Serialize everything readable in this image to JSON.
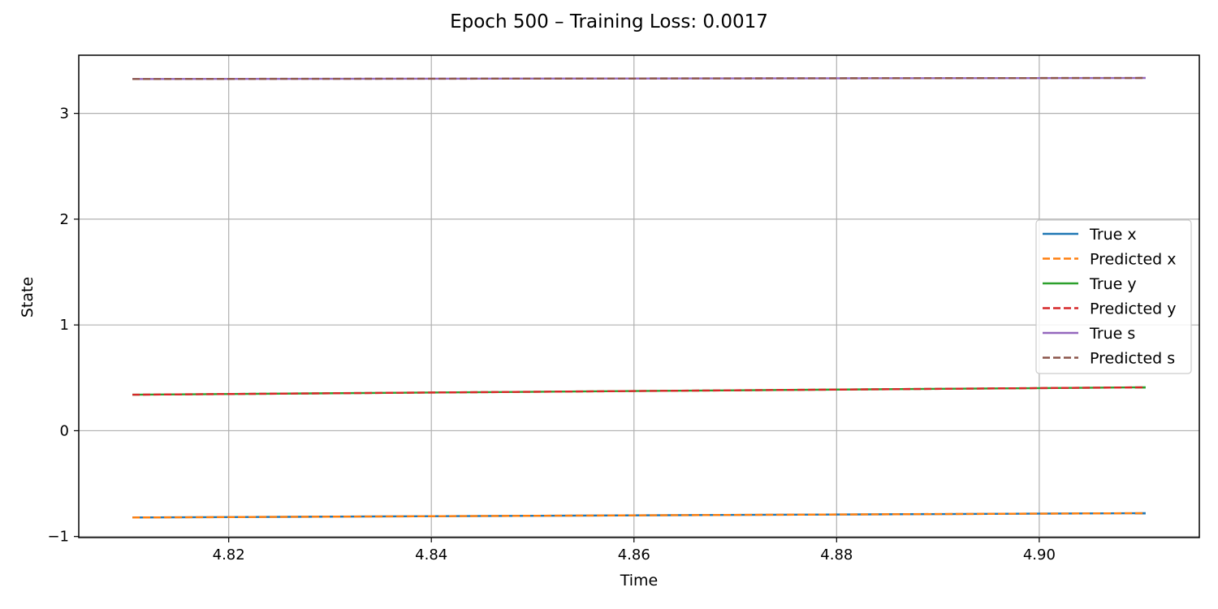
{
  "chart_data": {
    "type": "line",
    "title": "Epoch 500 – Training Loss: 0.0017",
    "xlabel": "Time",
    "ylabel": "State",
    "xlim": [
      4.8052,
      4.9158
    ],
    "ylim": [
      -1.01,
      3.55
    ],
    "xticks": [
      4.82,
      4.84,
      4.86,
      4.88,
      4.9
    ],
    "xtick_labels": [
      "4.82",
      "4.84",
      "4.86",
      "4.88",
      "4.90"
    ],
    "yticks": [
      -1,
      0,
      1,
      2,
      3
    ],
    "ytick_labels": [
      "−1",
      "0",
      "1",
      "2",
      "3"
    ],
    "grid": true,
    "legend_position": "center-right",
    "x": [
      4.8105,
      4.9105
    ],
    "series": [
      {
        "name": "True x",
        "values": [
          -0.82,
          -0.78
        ],
        "color": "#1f77b4",
        "style": "solid"
      },
      {
        "name": "Predicted x",
        "values": [
          -0.82,
          -0.78
        ],
        "color": "#ff7f0e",
        "style": "dashed"
      },
      {
        "name": "True y",
        "values": [
          0.34,
          0.41
        ],
        "color": "#2ca02c",
        "style": "solid"
      },
      {
        "name": "Predicted y",
        "values": [
          0.34,
          0.41
        ],
        "color": "#d62728",
        "style": "dashed"
      },
      {
        "name": "True s",
        "values": [
          3.325,
          3.335
        ],
        "color": "#9467bd",
        "style": "solid"
      },
      {
        "name": "Predicted s",
        "values": [
          3.325,
          3.335
        ],
        "color": "#8c564b",
        "style": "dashed"
      }
    ]
  }
}
